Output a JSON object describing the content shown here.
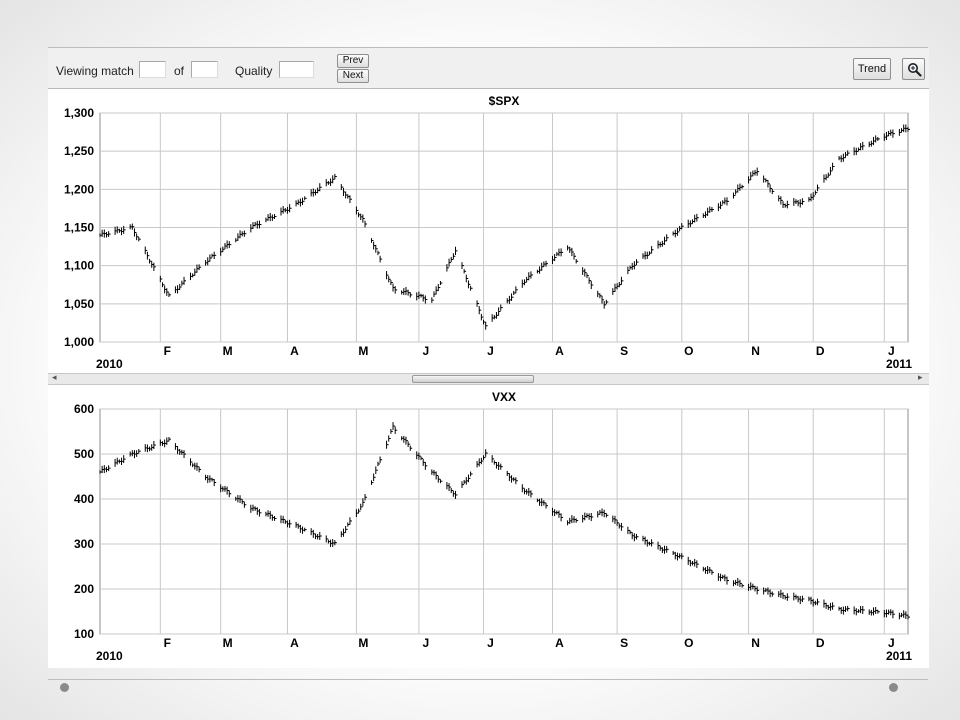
{
  "toolbar": {
    "viewing_label": "Viewing match",
    "of_label": "of",
    "quality_label": "Quality",
    "match_value": "",
    "total_value": "",
    "quality_value": "",
    "prev_label": "Prev",
    "next_label": "Next",
    "trend_label": "Trend",
    "zoom_icon": "magnifier-icon"
  },
  "chart_data": [
    {
      "type": "ohlc",
      "title": "$SPX",
      "ylim": [
        1000,
        1300
      ],
      "yticks": [
        1000,
        1050,
        1100,
        1150,
        1200,
        1250,
        1300
      ],
      "ytick_labels": [
        "1,000",
        "1,050",
        "1,100",
        "1,150",
        "1,200",
        "1,250",
        "1,300"
      ],
      "xlim": [
        "2010-01-04",
        "2011-01-14"
      ],
      "month_ticks": [
        "2010-02-01",
        "2010-03-01",
        "2010-04-01",
        "2010-05-03",
        "2010-06-01",
        "2010-07-01",
        "2010-08-02",
        "2010-09-01",
        "2010-10-01",
        "2010-11-01",
        "2010-12-01",
        "2011-01-03"
      ],
      "month_labels": [
        "F",
        "M",
        "A",
        "M",
        "J",
        "J",
        "A",
        "S",
        "O",
        "N",
        "D",
        "J"
      ],
      "year_labels": [
        "2010",
        "2011"
      ],
      "grid": true,
      "bar_color": "#000000",
      "series": [
        {
          "date": "2010-01-04",
          "close": 1140
        },
        {
          "date": "2010-01-19",
          "close": 1150
        },
        {
          "date": "2010-02-05",
          "close": 1060
        },
        {
          "date": "2010-02-22",
          "close": 1105
        },
        {
          "date": "2010-03-15",
          "close": 1150
        },
        {
          "date": "2010-04-05",
          "close": 1180
        },
        {
          "date": "2010-04-23",
          "close": 1215
        },
        {
          "date": "2010-05-06",
          "close": 1160
        },
        {
          "date": "2010-05-20",
          "close": 1070
        },
        {
          "date": "2010-06-07",
          "close": 1055
        },
        {
          "date": "2010-06-18",
          "close": 1120
        },
        {
          "date": "2010-07-02",
          "close": 1020
        },
        {
          "date": "2010-07-20",
          "close": 1080
        },
        {
          "date": "2010-08-09",
          "close": 1125
        },
        {
          "date": "2010-08-26",
          "close": 1050
        },
        {
          "date": "2010-09-08",
          "close": 1100
        },
        {
          "date": "2010-10-01",
          "close": 1150
        },
        {
          "date": "2010-10-22",
          "close": 1185
        },
        {
          "date": "2010-11-05",
          "close": 1225
        },
        {
          "date": "2010-11-17",
          "close": 1180
        },
        {
          "date": "2010-11-29",
          "close": 1185
        },
        {
          "date": "2010-12-13",
          "close": 1240
        },
        {
          "date": "2011-01-03",
          "close": 1270
        },
        {
          "date": "2011-01-14",
          "close": 1280
        }
      ]
    },
    {
      "type": "ohlc",
      "title": "VXX",
      "ylim": [
        100,
        600
      ],
      "yticks": [
        100,
        200,
        300,
        400,
        500,
        600
      ],
      "ytick_labels": [
        "100",
        "200",
        "300",
        "400",
        "500",
        "600"
      ],
      "xlim": [
        "2010-01-04",
        "2011-01-14"
      ],
      "month_ticks": [
        "2010-02-01",
        "2010-03-01",
        "2010-04-01",
        "2010-05-03",
        "2010-06-01",
        "2010-07-01",
        "2010-08-02",
        "2010-09-01",
        "2010-10-01",
        "2010-11-01",
        "2010-12-01",
        "2011-01-03"
      ],
      "month_labels": [
        "F",
        "M",
        "A",
        "M",
        "J",
        "J",
        "A",
        "S",
        "O",
        "N",
        "D",
        "J"
      ],
      "year_labels": [
        "2010",
        "2011"
      ],
      "grid": true,
      "bar_color": "#000000",
      "series": [
        {
          "date": "2010-01-04",
          "close": 460
        },
        {
          "date": "2010-01-19",
          "close": 500
        },
        {
          "date": "2010-02-05",
          "close": 530
        },
        {
          "date": "2010-02-22",
          "close": 450
        },
        {
          "date": "2010-03-15",
          "close": 380
        },
        {
          "date": "2010-04-05",
          "close": 340
        },
        {
          "date": "2010-04-23",
          "close": 300
        },
        {
          "date": "2010-05-06",
          "close": 390
        },
        {
          "date": "2010-05-20",
          "close": 560
        },
        {
          "date": "2010-06-07",
          "close": 460
        },
        {
          "date": "2010-06-18",
          "close": 410
        },
        {
          "date": "2010-07-02",
          "close": 500
        },
        {
          "date": "2010-07-20",
          "close": 420
        },
        {
          "date": "2010-08-09",
          "close": 350
        },
        {
          "date": "2010-08-26",
          "close": 370
        },
        {
          "date": "2010-09-08",
          "close": 320
        },
        {
          "date": "2010-10-01",
          "close": 270
        },
        {
          "date": "2010-10-22",
          "close": 220
        },
        {
          "date": "2010-11-05",
          "close": 200
        },
        {
          "date": "2010-11-17",
          "close": 185
        },
        {
          "date": "2010-11-29",
          "close": 175
        },
        {
          "date": "2010-12-13",
          "close": 155
        },
        {
          "date": "2011-01-03",
          "close": 148
        },
        {
          "date": "2011-01-14",
          "close": 140
        }
      ]
    }
  ]
}
